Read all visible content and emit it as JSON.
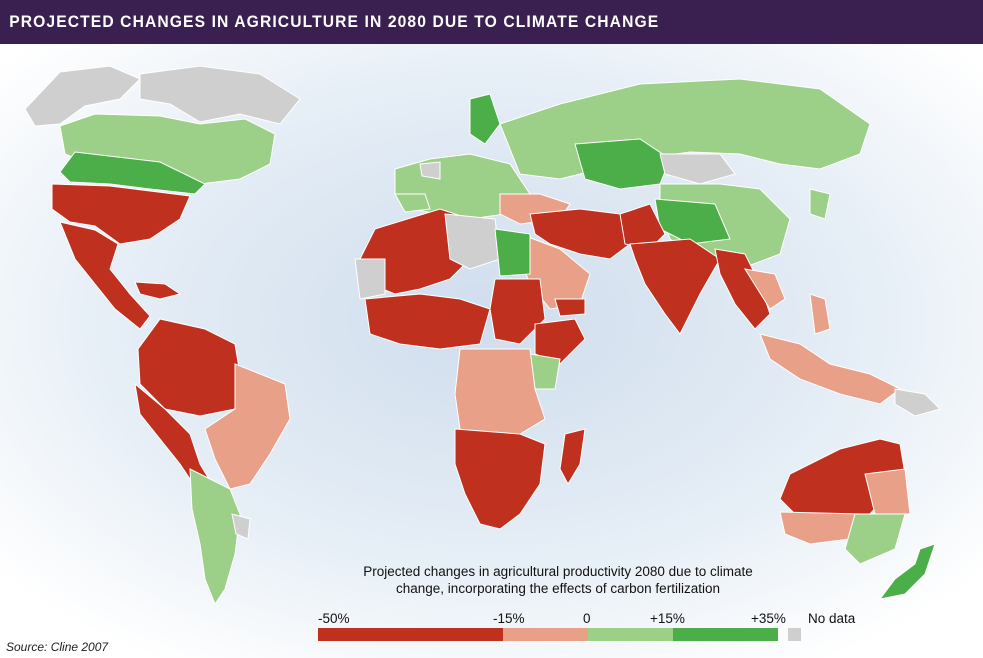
{
  "header": {
    "title": "PROJECTED CHANGES IN AGRICULTURE IN 2080 DUE TO CLIMATE CHANGE"
  },
  "legend": {
    "title_line1": "Projected changes in agricultural productivity 2080 due to climate",
    "title_line2": "change, incorporating the effects of carbon fertilization",
    "tick_labels": [
      "-50%",
      "-15%",
      "0",
      "+15%",
      "+35%"
    ],
    "no_data_label": "No data",
    "colors": {
      "severe_decline": "#c0301f",
      "moderate_decline": "#e8a088",
      "moderate_gain": "#9ccf88",
      "strong_gain": "#4cae48",
      "no_data": "#cfcfcf"
    }
  },
  "source": "Source: Cline 2007",
  "colors": {
    "title_bar": "#3a2050",
    "ocean": "#e4ecf4"
  }
}
